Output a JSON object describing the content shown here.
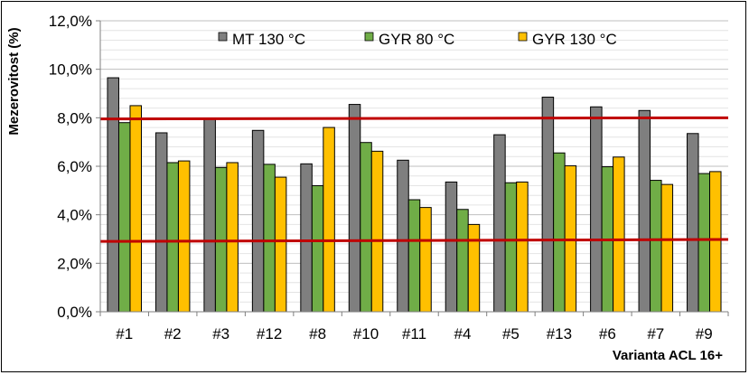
{
  "chart_data": {
    "type": "bar",
    "categories": [
      "#1",
      "#2",
      "#3",
      "#12",
      "#8",
      "#10",
      "#11",
      "#4",
      "#5",
      "#13",
      "#6",
      "#7",
      "#9"
    ],
    "series": [
      {
        "name": "MT 130 °C",
        "color": "#7f7f7f",
        "values": [
          9.65,
          7.38,
          7.95,
          7.48,
          6.1,
          8.55,
          6.25,
          5.35,
          7.3,
          8.85,
          8.45,
          8.3,
          7.35
        ]
      },
      {
        "name": "GYR 80 °C",
        "color": "#70ad47",
        "values": [
          7.8,
          6.15,
          5.95,
          6.08,
          5.2,
          6.98,
          4.62,
          4.22,
          5.32,
          6.55,
          5.98,
          5.42,
          5.7
        ]
      },
      {
        "name": "GYR 130 °C",
        "color": "#ffc000",
        "values": [
          8.5,
          6.22,
          6.15,
          5.55,
          7.6,
          6.62,
          4.3,
          3.6,
          5.35,
          6.02,
          6.38,
          5.25,
          5.78
        ]
      }
    ],
    "reference_lines": [
      {
        "color": "#c00000",
        "values": [
          7.95,
          8.0
        ]
      },
      {
        "color": "#c00000",
        "values": [
          2.9,
          2.98
        ]
      }
    ],
    "ylabel": "Mezerovitost (%)",
    "xlabel": "Varianta ACL 16+",
    "ylim": [
      0,
      12
    ],
    "yticks": [
      "0,0%",
      "2,0%",
      "4,0%",
      "6,0%",
      "8,0%",
      "10,0%",
      "12,0%"
    ],
    "grid": true,
    "legend_position": "top"
  }
}
